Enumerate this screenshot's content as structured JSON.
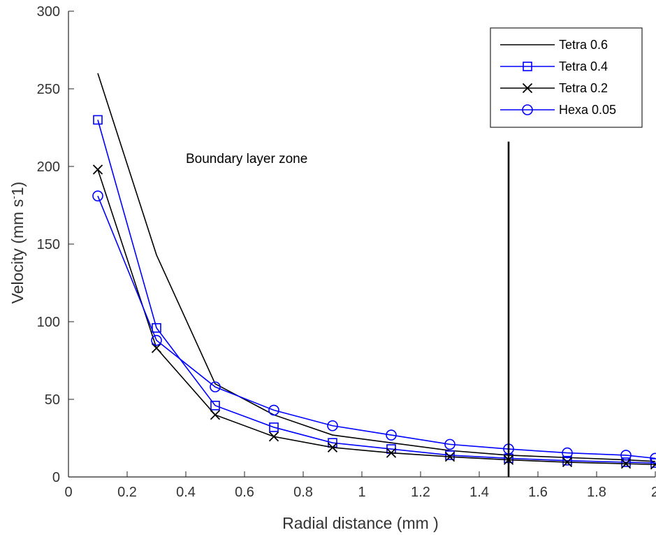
{
  "chart_data": {
    "type": "line",
    "title": "",
    "xlabel": "Radial distance   (mm )",
    "ylabel_main": "Velocity    (mm s",
    "ylabel_sup": "-",
    "ylabel_end": "1)",
    "xlim": [
      0,
      2
    ],
    "ylim": [
      0,
      300
    ],
    "x_ticks": [
      0,
      0.2,
      0.4,
      0.6,
      0.8,
      1,
      1.2,
      1.4,
      1.6,
      1.8,
      2
    ],
    "x_tick_labels": [
      "0",
      "0.2",
      "0.4",
      "0.6",
      "0.8",
      "1",
      "1.2",
      "1.4",
      "1.6",
      "1.8",
      "2"
    ],
    "y_ticks": [
      0,
      50,
      100,
      150,
      200,
      250,
      300
    ],
    "y_tick_labels": [
      "0",
      "50",
      "100",
      "150",
      "200",
      "250",
      "300"
    ],
    "grid": false,
    "legend_position": "top-right",
    "x": [
      0.1,
      0.3,
      0.5,
      0.7,
      0.9,
      1.1,
      1.3,
      1.5,
      1.7,
      1.9,
      2.0
    ],
    "series": [
      {
        "name": "Tetra 0.6",
        "color": "#000000",
        "marker": "none",
        "values": [
          260,
          143,
          60,
          40,
          27,
          22,
          17,
          14,
          12.5,
          11,
          10
        ]
      },
      {
        "name": "Tetra 0.4",
        "color": "#0000ff",
        "marker": "square",
        "values": [
          230,
          96,
          46,
          32,
          22,
          18,
          14,
          12,
          10.5,
          9.5,
          9
        ]
      },
      {
        "name": "Tetra 0.2",
        "color": "#000000",
        "marker": "x",
        "values": [
          198,
          83,
          40,
          26,
          19,
          15.5,
          13,
          11,
          9.5,
          8.5,
          8
        ]
      },
      {
        "name": "Hexa 0.05",
        "color": "#0000ff",
        "marker": "circle",
        "values": [
          181,
          88,
          58,
          43,
          33,
          27,
          21,
          18,
          15.5,
          14,
          12
        ]
      }
    ],
    "annotations": [
      {
        "text": "Boundary layer zone",
        "x": 0.4,
        "y": 205
      }
    ],
    "vertical_line": {
      "x": 1.5,
      "y_top": 216,
      "color": "#000000"
    }
  }
}
